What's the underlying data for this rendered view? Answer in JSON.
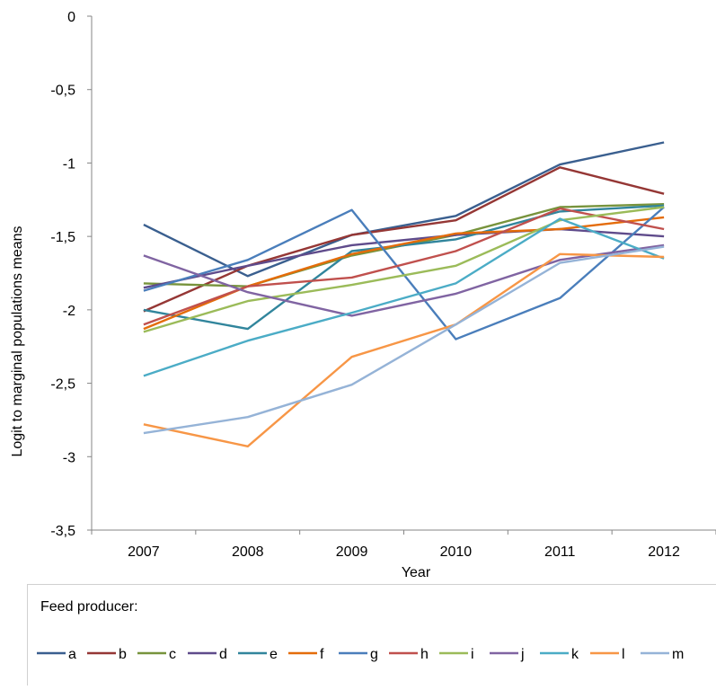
{
  "chart_data": {
    "type": "line",
    "title": "",
    "xlabel": "Year",
    "ylabel": "Logit  to marginal populations means",
    "categories": [
      "2007",
      "2008",
      "2009",
      "2010",
      "2011",
      "2012"
    ],
    "ylim": [
      -3.5,
      0
    ],
    "yticks": [
      0,
      -0.5,
      -1,
      -1.5,
      -2,
      -2.5,
      -3,
      -3.5
    ],
    "ytick_labels": [
      "0",
      "-0,5",
      "-1",
      "-1,5",
      "-2",
      "-2,5",
      "-3",
      "-3,5"
    ],
    "grid": false,
    "legend_position": "bottom",
    "legend_title": "Feed producer:",
    "series": [
      {
        "name": "a",
        "color": "#3a5f8f",
        "values": [
          -1.42,
          -1.77,
          -1.49,
          -1.36,
          -1.01,
          -0.86
        ]
      },
      {
        "name": "b",
        "color": "#953735",
        "values": [
          -2.01,
          -1.7,
          -1.49,
          -1.39,
          -1.03,
          -1.21
        ]
      },
      {
        "name": "c",
        "color": "#77933c",
        "values": [
          -1.82,
          -1.84,
          -1.63,
          -1.49,
          -1.3,
          -1.28
        ]
      },
      {
        "name": "d",
        "color": "#5f4b8b",
        "values": [
          -1.85,
          -1.7,
          -1.56,
          -1.49,
          -1.45,
          -1.5
        ]
      },
      {
        "name": "e",
        "color": "#31859c",
        "values": [
          -2.0,
          -2.13,
          -1.6,
          -1.52,
          -1.33,
          -1.29
        ]
      },
      {
        "name": "f",
        "color": "#e46c0a",
        "values": [
          -2.13,
          -1.84,
          -1.62,
          -1.48,
          -1.45,
          -1.37
        ]
      },
      {
        "name": "g",
        "color": "#4a7ebb",
        "values": [
          -1.87,
          -1.66,
          -1.32,
          -2.2,
          -1.92,
          -1.3
        ]
      },
      {
        "name": "h",
        "color": "#c0504d",
        "values": [
          -2.1,
          -1.84,
          -1.78,
          -1.6,
          -1.31,
          -1.45
        ]
      },
      {
        "name": "i",
        "color": "#9bbb59",
        "values": [
          -2.15,
          -1.94,
          -1.83,
          -1.7,
          -1.39,
          -1.3
        ]
      },
      {
        "name": "j",
        "color": "#8064a2",
        "values": [
          -1.63,
          -1.88,
          -2.04,
          -1.89,
          -1.66,
          -1.56
        ]
      },
      {
        "name": "k",
        "color": "#4bacc6",
        "values": [
          -2.45,
          -2.21,
          -2.02,
          -1.82,
          -1.38,
          -1.65
        ]
      },
      {
        "name": "l",
        "color": "#f79646",
        "values": [
          -2.78,
          -2.93,
          -2.32,
          -2.1,
          -1.62,
          -1.64
        ]
      },
      {
        "name": "m",
        "color": "#95b3d7",
        "values": [
          -2.84,
          -2.73,
          -2.51,
          -2.1,
          -1.68,
          -1.57
        ]
      }
    ]
  }
}
